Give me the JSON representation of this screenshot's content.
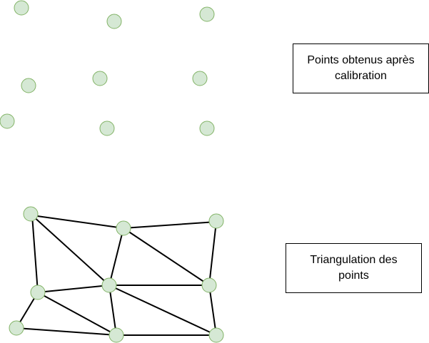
{
  "colors": {
    "point_fill": "#d5e8d4",
    "point_stroke": "#82b366",
    "edge_stroke": "#000000",
    "box_border": "#000000"
  },
  "labels": {
    "calibration_line1": "Points obtenus après",
    "calibration_line2": "calibration",
    "triangulation_line1": "Triangulation des",
    "triangulation_line2": "points"
  }
}
